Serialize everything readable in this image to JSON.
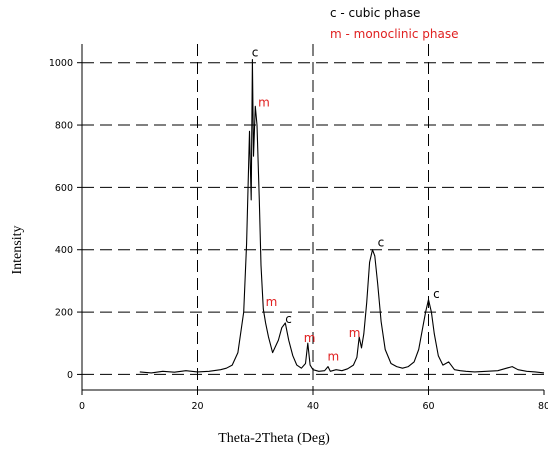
{
  "chart_data": {
    "type": "line",
    "xlabel": "Theta-2Theta (Deg)",
    "ylabel": "Intensity",
    "xlim": [
      0,
      80
    ],
    "ylim": [
      -50,
      1060
    ],
    "x_ticks": [
      "0",
      "20",
      "40",
      "60",
      "80"
    ],
    "y_ticks": [
      "0",
      "200",
      "400",
      "600",
      "800",
      "1000"
    ],
    "grid": true,
    "legend_position": "top-right",
    "legend": [
      {
        "text": "c - cubic phase",
        "color": "#000000"
      },
      {
        "text": "m - monoclinic phase",
        "color": "#e02020"
      }
    ],
    "series": [
      {
        "color": "#000000",
        "x": [
          10,
          12,
          14,
          16,
          18,
          20,
          22,
          24,
          25,
          26,
          27,
          28,
          28.5,
          29,
          29.3,
          29.5,
          29.7,
          30,
          30.3,
          30.7,
          31,
          31.4,
          31.8,
          32.3,
          33,
          34,
          34.6,
          35.2,
          35.8,
          36.5,
          37.2,
          38,
          38.7,
          39.1,
          39.5,
          40,
          41,
          42,
          42.6,
          43,
          44,
          45,
          46,
          47,
          47.6,
          48,
          48.4,
          48.8,
          49.3,
          49.8,
          50.3,
          50.7,
          51.2,
          51.8,
          52.5,
          53.5,
          54.5,
          55.5,
          56.5,
          57.5,
          58.3,
          59,
          59.5,
          60,
          60.5,
          61,
          61.7,
          62.5,
          63.5,
          64.5,
          65.5,
          66.5,
          68,
          70,
          72,
          73.5,
          74.5,
          75.5,
          77,
          78.5,
          80
        ],
        "values": [
          8,
          5,
          10,
          7,
          12,
          8,
          10,
          15,
          20,
          30,
          70,
          200,
          420,
          780,
          560,
          1010,
          700,
          860,
          800,
          560,
          350,
          210,
          165,
          120,
          70,
          110,
          150,
          165,
          110,
          60,
          30,
          20,
          35,
          100,
          30,
          15,
          10,
          12,
          25,
          10,
          15,
          12,
          18,
          30,
          55,
          120,
          85,
          130,
          230,
          360,
          400,
          380,
          290,
          170,
          80,
          35,
          25,
          20,
          25,
          40,
          80,
          150,
          200,
          240,
          200,
          130,
          60,
          30,
          40,
          15,
          12,
          10,
          8,
          10,
          12,
          20,
          25,
          15,
          10,
          8,
          5
        ]
      }
    ],
    "annotations": [
      {
        "text": "c",
        "x": 29.4,
        "y": 1010,
        "color": "#000000"
      },
      {
        "text": "m",
        "x": 30.5,
        "y": 850,
        "color": "#e02020"
      },
      {
        "text": "m",
        "x": 31.8,
        "y": 210,
        "color": "#e02020"
      },
      {
        "text": "c",
        "x": 35.2,
        "y": 155,
        "color": "#000000"
      },
      {
        "text": "m",
        "x": 38.4,
        "y": 95,
        "color": "#e02020"
      },
      {
        "text": "m",
        "x": 42.5,
        "y": 35,
        "color": "#e02020"
      },
      {
        "text": "m",
        "x": 46.2,
        "y": 110,
        "color": "#e02020"
      },
      {
        "text": "c",
        "x": 51.2,
        "y": 400,
        "color": "#000000"
      },
      {
        "text": "c",
        "x": 60.8,
        "y": 235,
        "color": "#000000"
      }
    ]
  }
}
